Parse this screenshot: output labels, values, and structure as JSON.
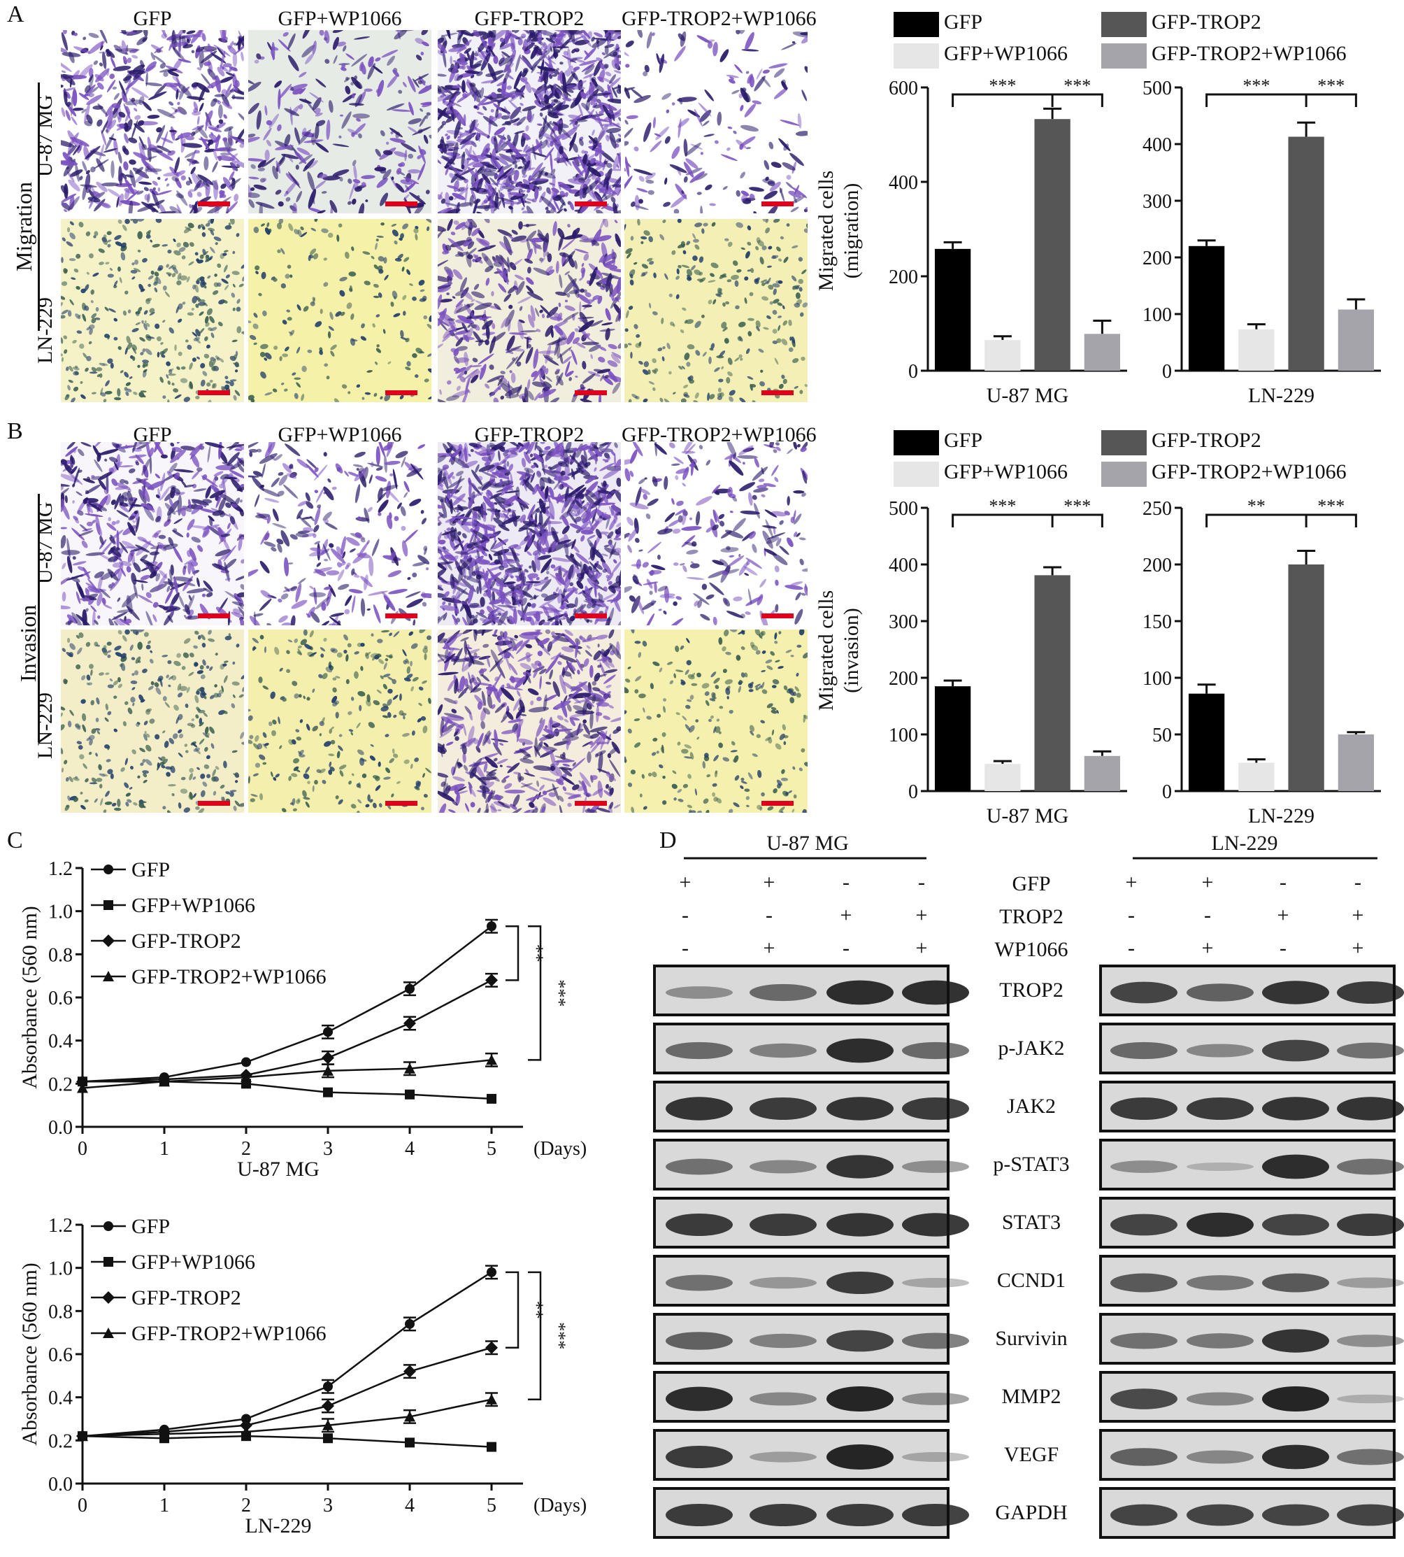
{
  "panels": {
    "A": "A",
    "B": "B",
    "C": "C",
    "D": "D"
  },
  "columns": [
    "GFP",
    "GFP+WP1066",
    "GFP-TROP2",
    "GFP-TROP2+WP1066"
  ],
  "row_labels": {
    "migration": "Migration",
    "invasion": "Invasion",
    "u87": "U-87 MG",
    "ln229": "LN-229"
  },
  "micro_colors": {
    "u87_mig": [
      "#ffffff",
      "#e6ebe6",
      "#f1f1f7",
      "#ffffff"
    ],
    "ln_mig": [
      "#f6f2c8",
      "#f6f1a9",
      "#f2eedd",
      "#f3efb5"
    ],
    "u87_inv": [
      "#f8f6fb",
      "#ffffff",
      "#eeeaf4",
      "#ffffff"
    ],
    "ln_inv": [
      "#f3eec7",
      "#f4efac",
      "#f4eddd",
      "#f5f0ad"
    ]
  },
  "bar_legend": {
    "gfp": "GFP",
    "gfp_wp": "GFP+WP1066",
    "trop2": "GFP-TROP2",
    "trop2_wp": "GFP-TROP2+WP1066"
  },
  "bar_colors": [
    "#000000",
    "#e6e6e6",
    "#565656",
    "#a4a4aa"
  ],
  "chart_data": [
    {
      "type": "bar",
      "panel": "A",
      "xlabel": "U-87 MG",
      "ylabel": "Migrated cells (migration)",
      "ylim": [
        0,
        600
      ],
      "ticks": [
        0,
        200,
        400,
        600
      ],
      "categories": [
        "GFP",
        "GFP+WP1066",
        "GFP-TROP2",
        "GFP-TROP2+WP1066"
      ],
      "values": [
        258,
        65,
        533,
        78
      ],
      "errors": [
        14,
        8,
        22,
        28
      ],
      "sig": [
        "***",
        "***"
      ]
    },
    {
      "type": "bar",
      "panel": "A",
      "xlabel": "LN-229",
      "ylabel": "",
      "ylim": [
        0,
        500
      ],
      "ticks": [
        0,
        100,
        200,
        300,
        400,
        500
      ],
      "categories": [
        "GFP",
        "GFP+WP1066",
        "GFP-TROP2",
        "GFP-TROP2+WP1066"
      ],
      "values": [
        220,
        73,
        413,
        108
      ],
      "errors": [
        10,
        9,
        25,
        18
      ],
      "sig": [
        "***",
        "***"
      ]
    },
    {
      "type": "bar",
      "panel": "B",
      "xlabel": "U-87 MG",
      "ylabel": "Migrated cells (invasion)",
      "ylim": [
        0,
        500
      ],
      "ticks": [
        0,
        100,
        200,
        300,
        400,
        500
      ],
      "categories": [
        "GFP",
        "GFP+WP1066",
        "GFP-TROP2",
        "GFP-TROP2+WP1066"
      ],
      "values": [
        185,
        48,
        381,
        62
      ],
      "errors": [
        10,
        5,
        14,
        8
      ],
      "sig": [
        "***",
        "***"
      ]
    },
    {
      "type": "bar",
      "panel": "B",
      "xlabel": "LN-229",
      "ylabel": "",
      "ylim": [
        0,
        250
      ],
      "ticks": [
        0,
        50,
        100,
        150,
        200,
        250
      ],
      "categories": [
        "GFP",
        "GFP+WP1066",
        "GFP-TROP2",
        "GFP-TROP2+WP1066"
      ],
      "values": [
        86,
        25,
        200,
        50
      ],
      "errors": [
        8,
        3,
        12,
        2
      ],
      "sig": [
        "**",
        "***"
      ]
    },
    {
      "type": "line",
      "panel": "C",
      "title": "U-87 MG",
      "xlabel": "(Days)",
      "ylabel": "Absorbance (560 nm)",
      "ylim": [
        0,
        1.2
      ],
      "yticks": [
        "0.0",
        "0.2",
        "0.4",
        "0.6",
        "0.8",
        "1.0",
        "1.2"
      ],
      "x": [
        0,
        1,
        2,
        3,
        4,
        5
      ],
      "series": [
        {
          "name": "GFP",
          "marker": "circle",
          "values": [
            0.21,
            0.23,
            0.3,
            0.44,
            0.64,
            0.93
          ]
        },
        {
          "name": "GFP+WP1066",
          "marker": "square",
          "values": [
            0.21,
            0.21,
            0.2,
            0.16,
            0.15,
            0.13
          ]
        },
        {
          "name": "GFP-TROP2",
          "marker": "diamond",
          "values": [
            0.21,
            0.22,
            0.24,
            0.32,
            0.48,
            0.68
          ]
        },
        {
          "name": "GFP-TROP2+WP1066",
          "marker": "triangle",
          "values": [
            0.18,
            0.21,
            0.23,
            0.26,
            0.27,
            0.31
          ]
        }
      ],
      "sig": [
        "**",
        "***"
      ]
    },
    {
      "type": "line",
      "panel": "C",
      "title": "LN-229",
      "xlabel": "(Days)",
      "ylabel": "Absorbance (560 nm)",
      "ylim": [
        0,
        1.2
      ],
      "yticks": [
        "0.0",
        "0.2",
        "0.4",
        "0.6",
        "0.8",
        "1.0",
        "1.2"
      ],
      "x": [
        0,
        1,
        2,
        3,
        4,
        5
      ],
      "series": [
        {
          "name": "GFP",
          "marker": "circle",
          "values": [
            0.22,
            0.25,
            0.3,
            0.45,
            0.74,
            0.98
          ]
        },
        {
          "name": "GFP+WP1066",
          "marker": "square",
          "values": [
            0.22,
            0.21,
            0.22,
            0.21,
            0.19,
            0.17
          ]
        },
        {
          "name": "GFP-TROP2",
          "marker": "diamond",
          "values": [
            0.22,
            0.24,
            0.27,
            0.36,
            0.52,
            0.63
          ]
        },
        {
          "name": "GFP-TROP2+WP1066",
          "marker": "triangle",
          "values": [
            0.22,
            0.23,
            0.24,
            0.27,
            0.31,
            0.39
          ]
        }
      ],
      "sig": [
        "**",
        "***"
      ]
    }
  ],
  "blot": {
    "cell_lines": [
      "U-87 MG",
      "LN-229"
    ],
    "treatments": [
      {
        "label": "GFP",
        "signs": [
          "+",
          "+",
          "-",
          "-"
        ]
      },
      {
        "label": "TROP2",
        "signs": [
          "-",
          "-",
          "+",
          "+"
        ]
      },
      {
        "label": "WP1066",
        "signs": [
          "-",
          "+",
          "-",
          "+"
        ]
      }
    ],
    "proteins": [
      "TROP2",
      "p-JAK2",
      "JAK2",
      "p-STAT3",
      "STAT3",
      "CCND1",
      "Survivin",
      "MMP2",
      "VEGF",
      "GAPDH"
    ],
    "u87": [
      [
        0.3,
        0.55,
        0.95,
        0.95
      ],
      [
        0.55,
        0.4,
        0.95,
        0.55
      ],
      [
        0.9,
        0.85,
        0.9,
        0.85
      ],
      [
        0.5,
        0.35,
        0.9,
        0.3
      ],
      [
        0.85,
        0.85,
        0.9,
        0.9
      ],
      [
        0.5,
        0.25,
        0.85,
        0.15
      ],
      [
        0.6,
        0.4,
        0.8,
        0.5
      ],
      [
        0.95,
        0.35,
        1.0,
        0.3
      ],
      [
        0.85,
        0.2,
        1.0,
        0.15
      ],
      [
        0.85,
        0.85,
        0.85,
        0.85
      ]
    ],
    "ln229": [
      [
        0.8,
        0.6,
        0.9,
        0.85
      ],
      [
        0.55,
        0.35,
        0.8,
        0.5
      ],
      [
        0.85,
        0.85,
        0.9,
        0.9
      ],
      [
        0.3,
        0.08,
        0.95,
        0.5
      ],
      [
        0.8,
        0.95,
        0.8,
        0.85
      ],
      [
        0.65,
        0.45,
        0.65,
        0.2
      ],
      [
        0.5,
        0.45,
        0.9,
        0.3
      ],
      [
        0.75,
        0.35,
        1.0,
        0.1
      ],
      [
        0.6,
        0.35,
        0.95,
        0.5
      ],
      [
        0.8,
        0.8,
        0.8,
        0.8
      ]
    ]
  }
}
